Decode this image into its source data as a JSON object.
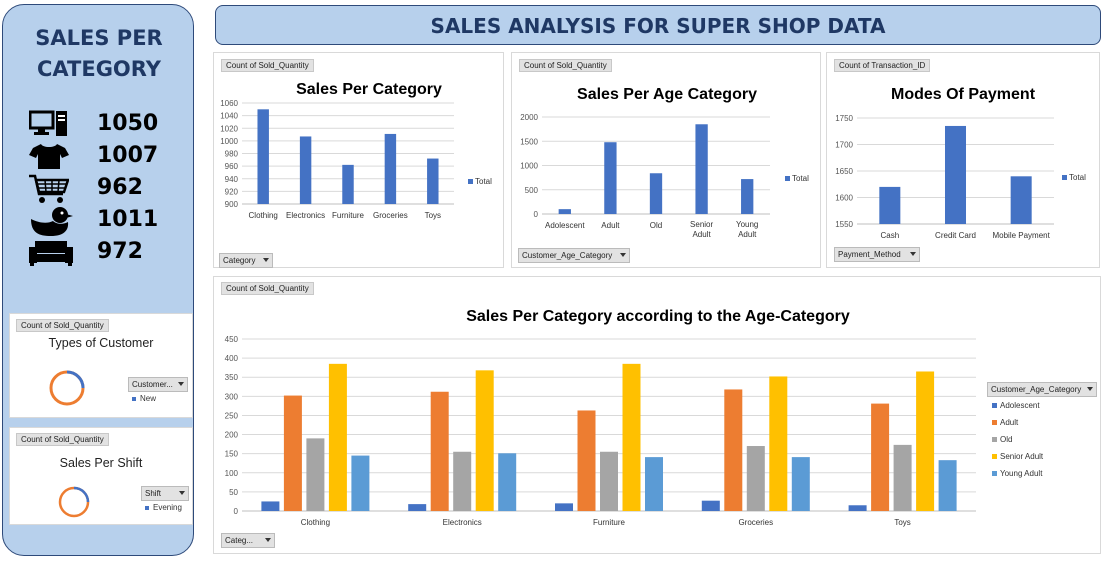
{
  "header": {
    "title": "SALES ANALYSIS FOR SUPER SHOP DATA"
  },
  "sidebar": {
    "title_line1": "SALES PER",
    "title_line2": "CATEGORY",
    "items": [
      {
        "icon": "computer-icon",
        "value": "1050"
      },
      {
        "icon": "tshirt-icon",
        "value": "1007"
      },
      {
        "icon": "shopping-cart-icon",
        "value": "962"
      },
      {
        "icon": "rubber-duck-icon",
        "value": "1011"
      },
      {
        "icon": "sofa-icon",
        "value": "972"
      }
    ],
    "customer_card": {
      "field": "Count of Sold_Quantity",
      "title": "Types of Customer",
      "filter": "Customer...",
      "legend": "New"
    },
    "shift_card": {
      "field": "Count of Sold_Quantity",
      "title": "Sales Per Shift",
      "filter": "Shift",
      "legend": "Evening"
    }
  },
  "panels": {
    "category": {
      "field": "Count of Sold_Quantity",
      "filter": "Category",
      "legend": "Total"
    },
    "age": {
      "field": "Count of Sold_Quantity",
      "filter": "Customer_Age_Category",
      "legend": "Total"
    },
    "payment": {
      "field": "Count of Transaction_ID",
      "filter": "Payment_Method",
      "legend": "Total"
    },
    "combo": {
      "field": "Count of Sold_Quantity",
      "filter": "Categ...",
      "legend_title": "Customer_Age_Category"
    }
  },
  "colors": {
    "blue": "#4472c4",
    "orange": "#ed7d31",
    "gray": "#a5a5a5",
    "gold": "#ffc000",
    "lightblue": "#5b9bd5",
    "accent": "#1f3864"
  },
  "chart_data": [
    {
      "type": "bar",
      "title": "Sales Per Category",
      "categories": [
        "Clothing",
        "Electronics",
        "Furniture",
        "Groceries",
        "Toys"
      ],
      "values": [
        1050,
        1007,
        962,
        1011,
        972
      ],
      "ylim": [
        900,
        1060
      ],
      "yticks": [
        900,
        920,
        940,
        960,
        980,
        1000,
        1020,
        1040,
        1060
      ],
      "legend": "right"
    },
    {
      "type": "bar",
      "title": "Sales Per Age Category",
      "categories": [
        "Adolescent",
        "Adult",
        "Old",
        "Senior Adult",
        "Young Adult"
      ],
      "values": [
        100,
        1480,
        840,
        1850,
        720
      ],
      "ylim": [
        0,
        2000
      ],
      "yticks": [
        0,
        500,
        1000,
        1500,
        2000
      ],
      "legend": "right"
    },
    {
      "type": "bar",
      "title": "Modes Of Payment",
      "categories": [
        "Cash",
        "Credit Card",
        "Mobile Payment"
      ],
      "values": [
        1620,
        1735,
        1640
      ],
      "ylim": [
        1550,
        1750
      ],
      "yticks": [
        1550,
        1600,
        1650,
        1700,
        1750
      ],
      "legend": "right"
    },
    {
      "type": "bar",
      "title": "Sales Per Category according to the Age-Category",
      "categories": [
        "Clothing",
        "Electronics",
        "Furniture",
        "Groceries",
        "Toys"
      ],
      "series": [
        {
          "name": "Adolescent",
          "values": [
            25,
            18,
            20,
            27,
            15
          ]
        },
        {
          "name": "Adult",
          "values": [
            302,
            312,
            263,
            318,
            281
          ]
        },
        {
          "name": "Old",
          "values": [
            190,
            155,
            155,
            170,
            173
          ]
        },
        {
          "name": "Senior Adult",
          "values": [
            385,
            368,
            385,
            352,
            365
          ]
        },
        {
          "name": "Young Adult",
          "values": [
            145,
            151,
            141,
            141,
            133
          ]
        }
      ],
      "ylim": [
        0,
        450
      ],
      "yticks": [
        0,
        50,
        100,
        150,
        200,
        250,
        300,
        350,
        400,
        450
      ],
      "legend": "right"
    }
  ]
}
